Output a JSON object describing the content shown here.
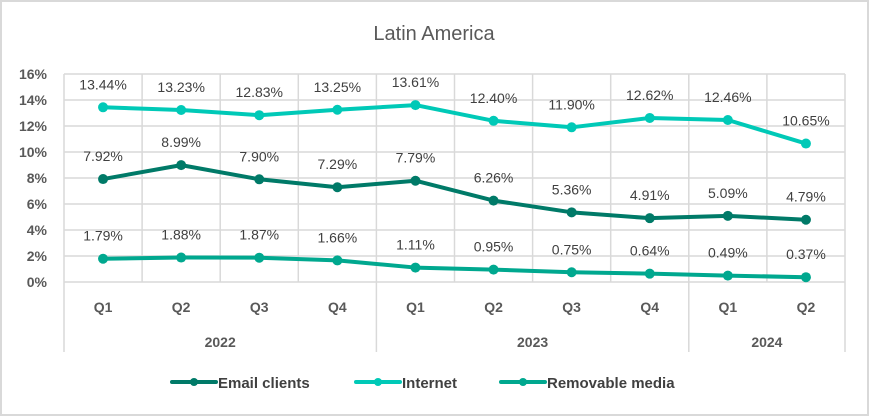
{
  "chart_data": {
    "type": "line",
    "title": "Latin America",
    "xlabel": "",
    "ylabel": "",
    "ylim": [
      0,
      16
    ],
    "yticks": [
      "0%",
      "2%",
      "4%",
      "6%",
      "8%",
      "10%",
      "12%",
      "14%",
      "16%"
    ],
    "grid": true,
    "legend_position": "bottom",
    "categories": [
      "Q1",
      "Q2",
      "Q3",
      "Q4",
      "Q1",
      "Q2",
      "Q3",
      "Q4",
      "Q1",
      "Q2"
    ],
    "category_groups": [
      {
        "label": "2022",
        "count": 4
      },
      {
        "label": "2023",
        "count": 4
      },
      {
        "label": "2024",
        "count": 2
      }
    ],
    "series": [
      {
        "name": "Email clients",
        "color": "#007A68",
        "values": [
          7.92,
          8.99,
          7.9,
          7.29,
          7.79,
          6.26,
          5.36,
          4.91,
          5.09,
          4.79
        ],
        "labels": [
          "7.92%",
          "8.99%",
          "7.90%",
          "7.29%",
          "7.79%",
          "6.26%",
          "5.36%",
          "4.91%",
          "5.09%",
          "4.79%"
        ]
      },
      {
        "name": "Internet",
        "color": "#00C9B7",
        "values": [
          13.44,
          13.23,
          12.83,
          13.25,
          13.61,
          12.4,
          11.9,
          12.62,
          12.46,
          10.65
        ],
        "labels": [
          "13.44%",
          "13.23%",
          "12.83%",
          "13.25%",
          "13.61%",
          "12.40%",
          "11.90%",
          "12.62%",
          "12.46%",
          "10.65%"
        ]
      },
      {
        "name": "Removable media",
        "color": "#00A88F",
        "values": [
          1.79,
          1.88,
          1.87,
          1.66,
          1.11,
          0.95,
          0.75,
          0.64,
          0.49,
          0.37
        ],
        "labels": [
          "1.79%",
          "1.88%",
          "1.87%",
          "1.66%",
          "1.11%",
          "0.95%",
          "0.75%",
          "0.64%",
          "0.49%",
          "0.37%"
        ]
      }
    ]
  }
}
